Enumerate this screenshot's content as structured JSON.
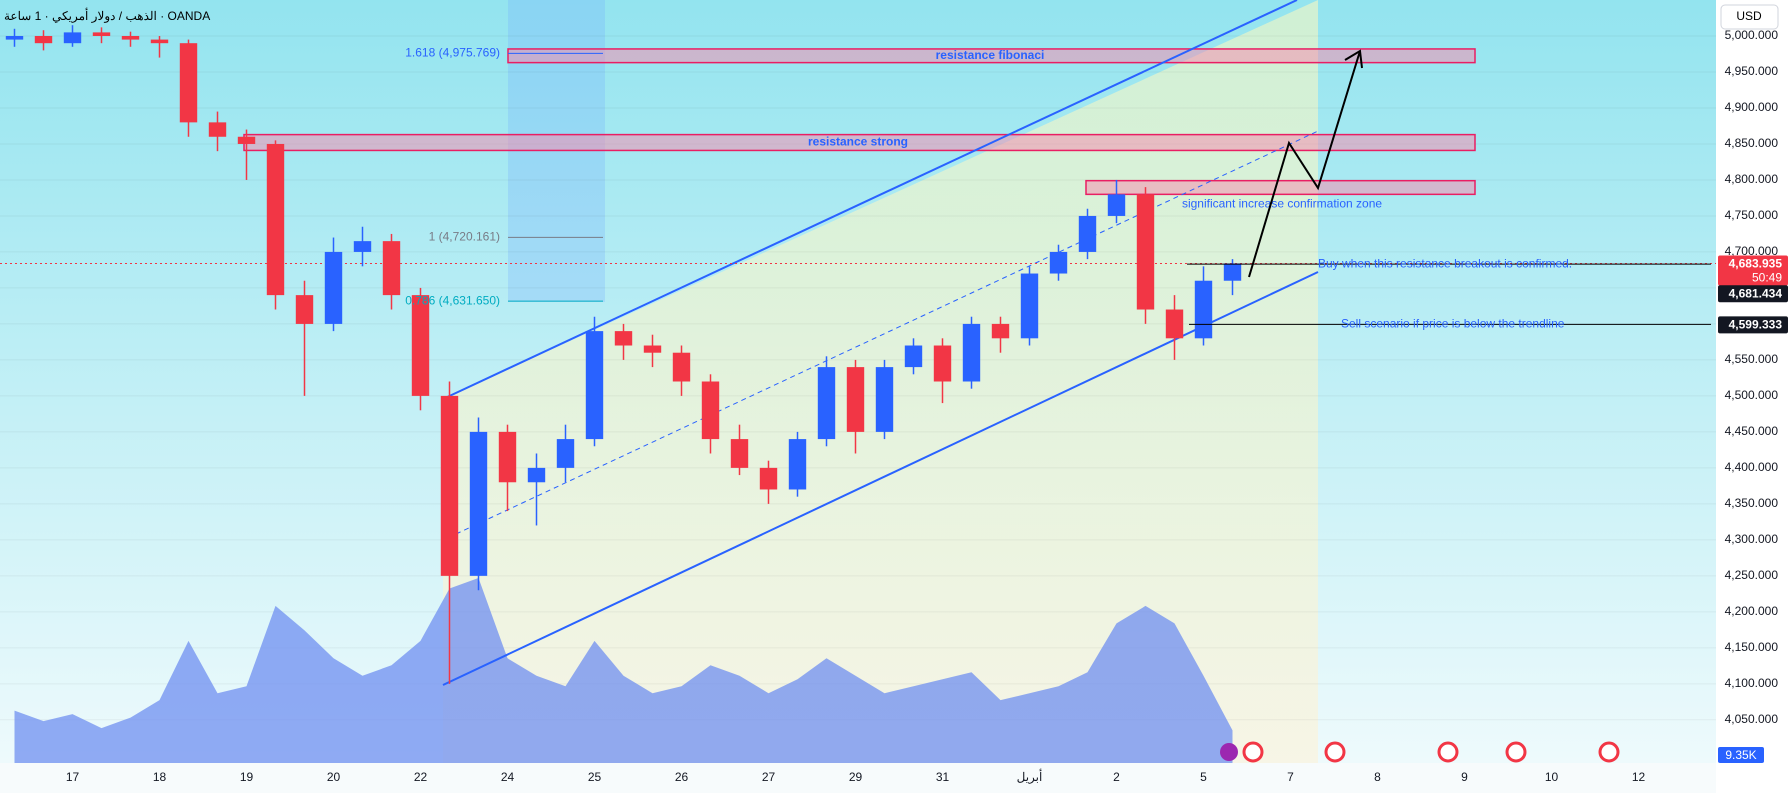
{
  "title": "الذهب / دولار أمريكي · 1 ساعة · OANDA",
  "currency_button": "USD",
  "chart_data": {
    "type": "candlestick",
    "categories": [
      null,
      null,
      "17",
      null,
      null,
      "18",
      null,
      null,
      "19",
      null,
      null,
      "20",
      null,
      null,
      "22",
      null,
      null,
      "24",
      null,
      null,
      "25",
      null,
      null,
      "26",
      null,
      null,
      "27",
      null,
      null,
      "29",
      null,
      null,
      "31",
      null,
      null,
      "أبريل",
      null,
      null,
      "2",
      null,
      null,
      "5",
      null,
      null,
      "7",
      null,
      null,
      "8",
      null,
      null,
      "9",
      null,
      null,
      "10",
      null,
      null,
      "12",
      null,
      null
    ],
    "open": [
      4995,
      5000,
      4990,
      5005,
      5000,
      4995,
      4990,
      4880,
      4860,
      4850,
      4640,
      4600,
      4700,
      4715,
      4640,
      4500,
      4250,
      4450,
      4380,
      4400,
      4440,
      4590,
      4570,
      4560,
      4520,
      4440,
      4400,
      4370,
      4440,
      4540,
      4450,
      4540,
      4570,
      4520,
      4600,
      4580,
      4670,
      4700,
      4750,
      4780,
      4620,
      4580,
      4660,
      null,
      null,
      null,
      null,
      null,
      null,
      null,
      null,
      null,
      null,
      null,
      null,
      null,
      null,
      null,
      null
    ],
    "high": [
      5010,
      5008,
      5015,
      5012,
      5006,
      5000,
      4995,
      4895,
      4870,
      4855,
      4660,
      4720,
      4735,
      4725,
      4650,
      4520,
      4470,
      4460,
      4420,
      4460,
      4610,
      4600,
      4585,
      4570,
      4530,
      4460,
      4410,
      4450,
      4555,
      4550,
      4550,
      4580,
      4580,
      4610,
      4610,
      4680,
      4710,
      4760,
      4800,
      4790,
      4640,
      4680,
      4690,
      null,
      null,
      null,
      null,
      null,
      null,
      null,
      null,
      null,
      null,
      null,
      null,
      null,
      null,
      null,
      null
    ],
    "low": [
      4985,
      4980,
      4985,
      4990,
      4985,
      4970,
      4860,
      4840,
      4800,
      4620,
      4500,
      4590,
      4680,
      4620,
      4480,
      4100,
      4230,
      4340,
      4320,
      4380,
      4430,
      4550,
      4540,
      4500,
      4420,
      4390,
      4350,
      4360,
      4430,
      4420,
      4440,
      4530,
      4490,
      4510,
      4560,
      4570,
      4660,
      4690,
      4740,
      4600,
      4550,
      4570,
      4640,
      null,
      null,
      null,
      null,
      null,
      null,
      null,
      null,
      null,
      null,
      null,
      null,
      null,
      null,
      null,
      null
    ],
    "close": [
      5000,
      4990,
      5005,
      5000,
      4995,
      4990,
      4880,
      4860,
      4850,
      4640,
      4600,
      4700,
      4715,
      4640,
      4500,
      4250,
      4450,
      4380,
      4400,
      4440,
      4590,
      4570,
      4560,
      4520,
      4440,
      4400,
      4370,
      4440,
      4540,
      4450,
      4540,
      4570,
      4520,
      4600,
      4580,
      4670,
      4700,
      4750,
      4780,
      4620,
      4580,
      4660,
      4684,
      null,
      null,
      null,
      null,
      null,
      null,
      null,
      null,
      null,
      null,
      null,
      null,
      null,
      null,
      null,
      null
    ],
    "up_color": "#2962ff",
    "down_color": "#f23645",
    "ylim": [
      3990,
      5050
    ],
    "yticks": [
      {
        "value": 4050,
        "label": "4,050.000"
      },
      {
        "value": 4100,
        "label": "4,100.000"
      },
      {
        "value": 4150,
        "label": "4,150.000"
      },
      {
        "value": 4200,
        "label": "4,200.000"
      },
      {
        "value": 4250,
        "label": "4,250.000"
      },
      {
        "value": 4300,
        "label": "4,300.000"
      },
      {
        "value": 4350,
        "label": "4,350.000"
      },
      {
        "value": 4400,
        "label": "4,400.000"
      },
      {
        "value": 4450,
        "label": "4,450.000"
      },
      {
        "value": 4500,
        "label": "4,500.000"
      },
      {
        "value": 4550,
        "label": "4,550.000"
      },
      {
        "value": 4600,
        "label": "4,600.000"
      },
      {
        "value": 4650,
        "label": "4,650.000"
      },
      {
        "value": 4700,
        "label": "4,700.000"
      },
      {
        "value": 4750,
        "label": "4,750.000"
      },
      {
        "value": 4800,
        "label": "4,800.000"
      },
      {
        "value": 4850,
        "label": "4,850.000"
      },
      {
        "value": 4900,
        "label": "4,900.000"
      },
      {
        "value": 4950,
        "label": "4,950.000"
      },
      {
        "value": 5000,
        "label": "5,000.000"
      }
    ],
    "grid": true,
    "volume": {
      "values": [
        15,
        12,
        14,
        10,
        13,
        18,
        35,
        20,
        22,
        45,
        38,
        30,
        25,
        28,
        35,
        50,
        53,
        30,
        25,
        22,
        35,
        25,
        20,
        22,
        28,
        25,
        20,
        24,
        30,
        25,
        20,
        22,
        24,
        26,
        18,
        20,
        22,
        26,
        40,
        45,
        40,
        25,
        9.35,
        null,
        null,
        null,
        null,
        null,
        null,
        null,
        null,
        null,
        null,
        null,
        null,
        null,
        null,
        null,
        null
      ],
      "label": "9.35K",
      "color": "#6f8ff0"
    },
    "zones": [
      {
        "text": "resistance fibonaci",
        "low": 4963,
        "high": 4982
      },
      {
        "text": "resistance strong",
        "low": 4841,
        "high": 4863
      },
      {
        "text": "significant increase confirmation zone",
        "low": 4780,
        "high": 4799
      }
    ],
    "fib_levels": [
      {
        "label": "1.618 (4,975.769)",
        "value": 4975.769,
        "color": "#2962ff"
      },
      {
        "label": "1 (4,720.161)",
        "value": 4720.161,
        "color": "#787b86"
      },
      {
        "label": "0.786 (4,631.650)",
        "value": 4631.65,
        "color": "#00acc1"
      }
    ],
    "notes": [
      {
        "text": "Buy when this resistance breakout is confirmed.",
        "value": 4683
      },
      {
        "text": "Sell scenario if price is below the trendline",
        "value": 4599.333
      }
    ],
    "price_tags": [
      {
        "label": "4,683.935",
        "value": 4683.935,
        "color": "#f23645"
      },
      {
        "label": "4,681.434",
        "value": 4681.434,
        "color": "#131722"
      },
      {
        "label": "4,599.333",
        "value": 4599.333,
        "color": "#131722"
      }
    ],
    "countdown": "50:49"
  }
}
